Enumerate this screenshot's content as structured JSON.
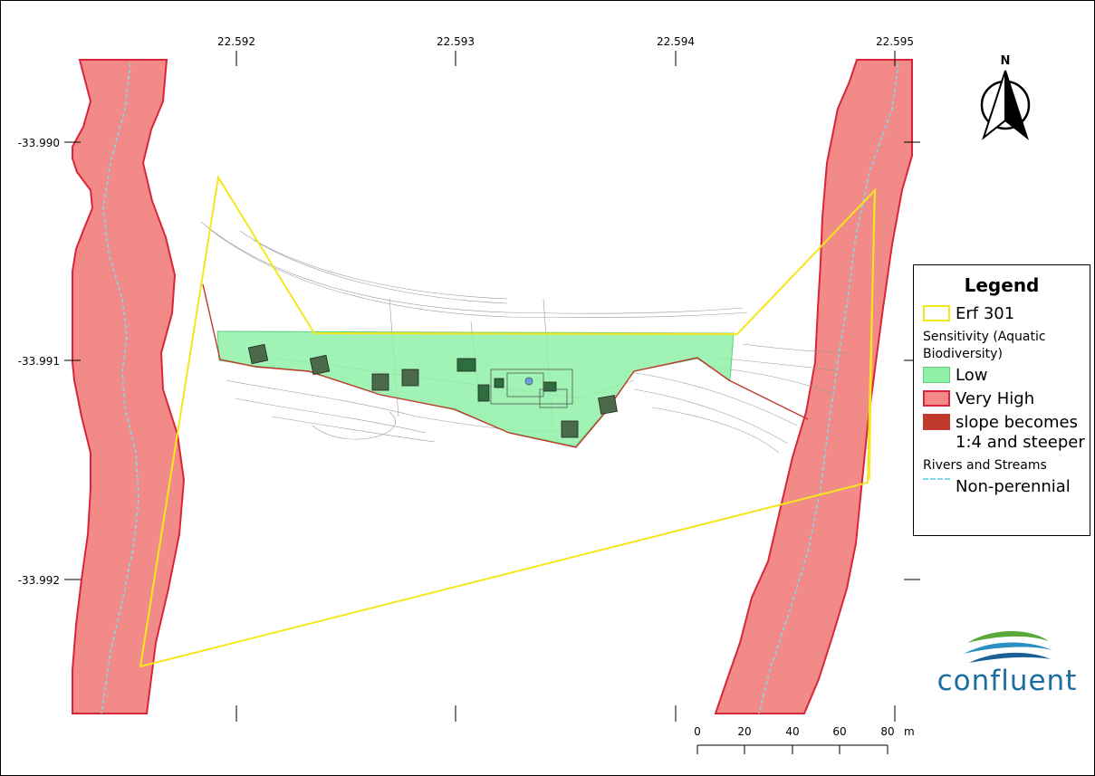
{
  "map": {
    "x_ticks": [
      "22.592",
      "22.593",
      "22.594",
      "22.595"
    ],
    "y_ticks": [
      "-33.990",
      "-33.991",
      "-33.992"
    ],
    "north_label": "N"
  },
  "scale_bar": {
    "labels": [
      "0",
      "20",
      "40",
      "60",
      "80"
    ],
    "unit": "m"
  },
  "legend": {
    "title": "Legend",
    "erf": "Erf 301",
    "sensitivity_line1": "Sensitivity (Aquatic",
    "sensitivity_line2": "Biodiversity)",
    "low": "Low",
    "very_high": "Very High",
    "slope_line1": "slope becomes",
    "slope_line2": "1:4 and steeper",
    "rivers_heading": "Rivers and Streams",
    "non_perennial": "Non-perennial"
  },
  "logo": {
    "text": "confluent"
  },
  "colors": {
    "erf_boundary": "#f5e61e",
    "low_fill": "#8ff0a8",
    "very_high_fill": "#f28b87",
    "very_high_stroke": "#d9253a",
    "slope_line": "#c0392b",
    "river_line": "#7fd8e8",
    "logo_text": "#1b6fa0"
  }
}
